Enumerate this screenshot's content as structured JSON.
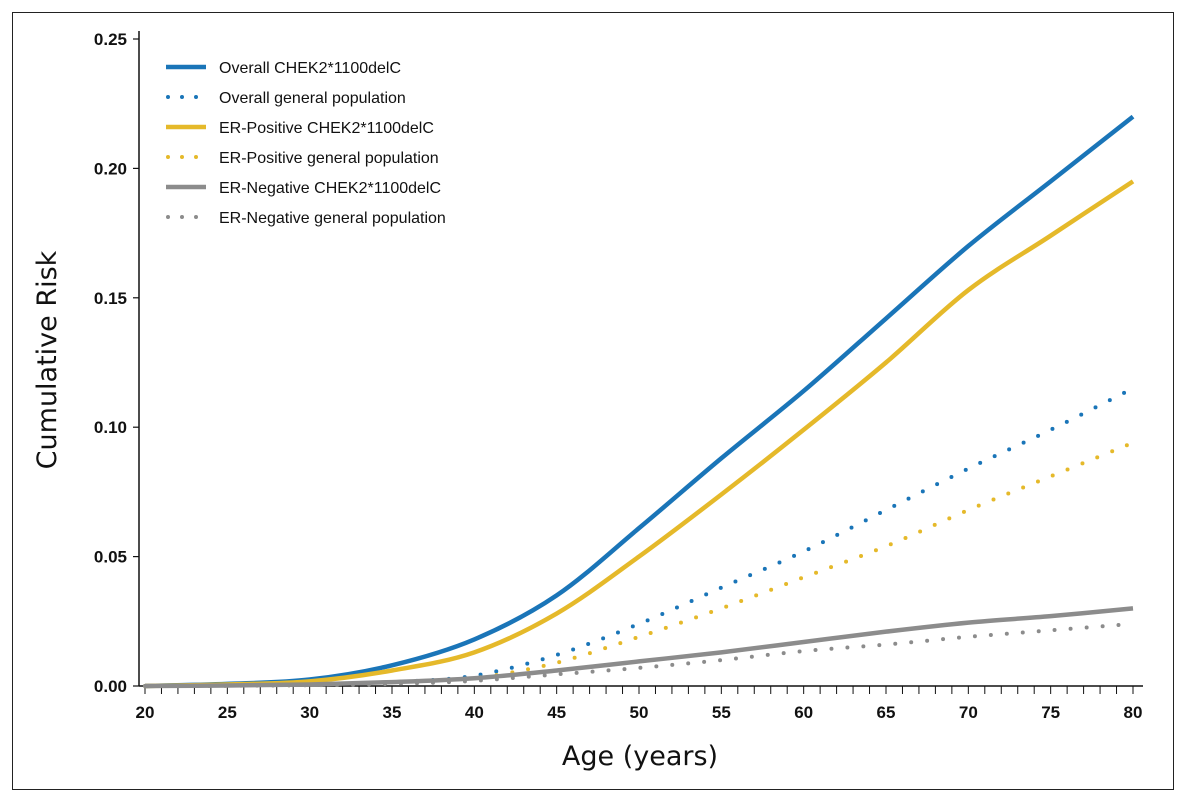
{
  "chart_data": {
    "type": "line",
    "title": "",
    "xlabel": "Age (years)",
    "ylabel": "Cumulative Risk",
    "xlim": [
      20,
      80
    ],
    "ylim": [
      0,
      0.25
    ],
    "x_ticks": [
      "20",
      "25",
      "30",
      "35",
      "40",
      "45",
      "50",
      "55",
      "60",
      "65",
      "70",
      "75",
      "80"
    ],
    "y_ticks": [
      "0.00",
      "0.05",
      "0.10",
      "0.15",
      "0.20",
      "0.25"
    ],
    "x": [
      20,
      25,
      30,
      35,
      40,
      45,
      50,
      55,
      60,
      65,
      70,
      75,
      80
    ],
    "legend_position": "top-left",
    "series": [
      {
        "name": "Overall CHEK2*1100delC",
        "color": "#1a75b8",
        "style": "solid",
        "values": [
          0.0,
          0.0008,
          0.0025,
          0.008,
          0.018,
          0.035,
          0.061,
          0.088,
          0.114,
          0.142,
          0.17,
          0.195,
          0.22
        ]
      },
      {
        "name": "Overall general population",
        "color": "#1a75b8",
        "style": "dotted",
        "values": [
          0.0,
          0.0002,
          0.0005,
          0.0015,
          0.004,
          0.012,
          0.024,
          0.038,
          0.052,
          0.068,
          0.084,
          0.099,
          0.115
        ]
      },
      {
        "name": "ER-Positive CHEK2*1100delC",
        "color": "#e5b92a",
        "style": "solid",
        "values": [
          0.0,
          0.0006,
          0.0018,
          0.006,
          0.013,
          0.028,
          0.05,
          0.074,
          0.099,
          0.125,
          0.153,
          0.174,
          0.195
        ]
      },
      {
        "name": "ER-Positive general population",
        "color": "#e5b92a",
        "style": "dotted",
        "values": [
          0.0,
          0.0001,
          0.0004,
          0.001,
          0.003,
          0.009,
          0.019,
          0.03,
          0.042,
          0.054,
          0.068,
          0.081,
          0.094
        ]
      },
      {
        "name": "ER-Negative CHEK2*1100delC",
        "color": "#8c8c8c",
        "style": "solid",
        "values": [
          0.0,
          0.0002,
          0.0006,
          0.0015,
          0.003,
          0.006,
          0.0095,
          0.013,
          0.017,
          0.021,
          0.0245,
          0.027,
          0.03
        ]
      },
      {
        "name": "ER-Negative general population",
        "color": "#8c8c8c",
        "style": "dotted",
        "values": [
          0.0,
          0.0001,
          0.0003,
          0.0008,
          0.002,
          0.0045,
          0.007,
          0.01,
          0.0135,
          0.016,
          0.019,
          0.0215,
          0.024
        ]
      }
    ]
  }
}
